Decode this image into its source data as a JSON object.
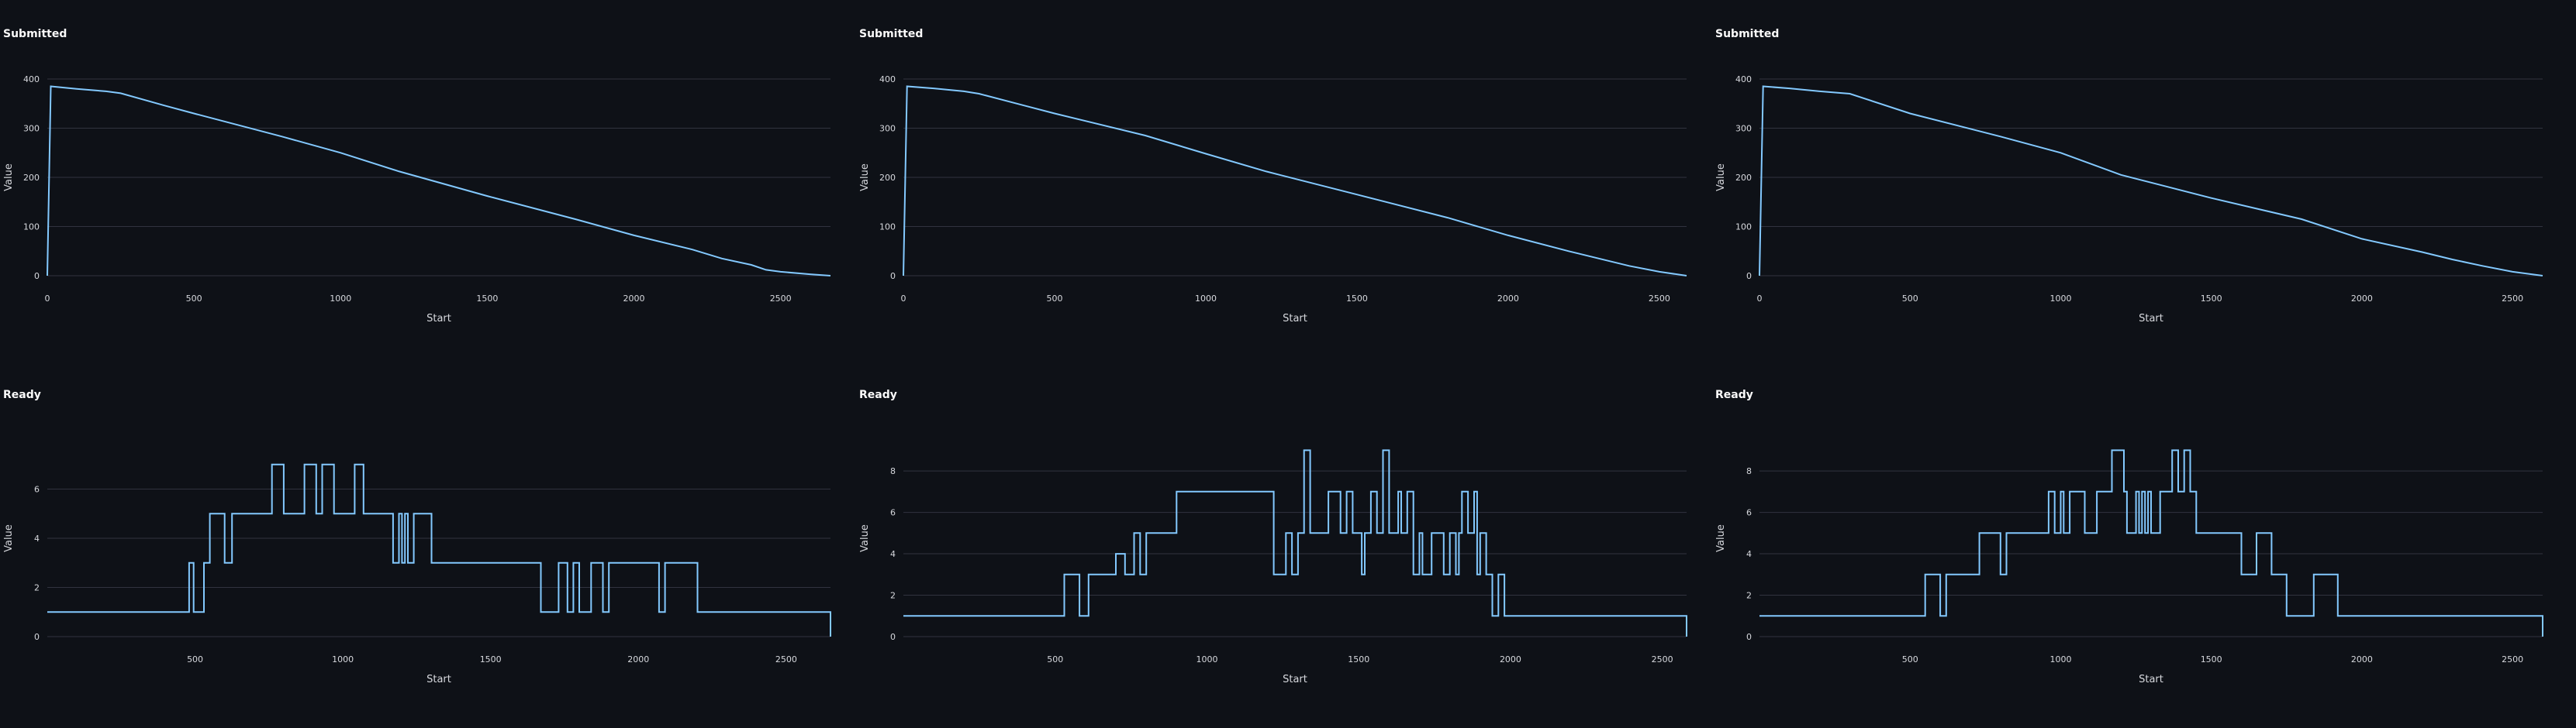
{
  "colors": {
    "background": "#0e1117",
    "line": "#83c9ff",
    "grid": "#31333f",
    "text": "#d7d9de"
  },
  "chart_data": [
    {
      "type": "line",
      "title": "Submitted",
      "xlabel": "Start",
      "ylabel": "Value",
      "xlim": [
        0,
        2670
      ],
      "ylim": [
        0,
        400
      ],
      "step": false,
      "grid": true,
      "xticks": [
        0,
        500,
        1000,
        1500,
        2000,
        2500
      ],
      "yticks": [
        0,
        100,
        200,
        300,
        400
      ],
      "series": [
        {
          "x": [
            0,
            12,
            100,
            200,
            250,
            400,
            500,
            800,
            1000,
            1200,
            1500,
            1800,
            2000,
            2200,
            2300,
            2400,
            2450,
            2500,
            2600,
            2670
          ],
          "y": [
            0,
            385,
            380,
            375,
            371,
            346,
            330,
            283,
            250,
            212,
            162,
            115,
            82,
            53,
            35,
            22,
            12,
            8,
            3,
            0
          ]
        }
      ]
    },
    {
      "type": "line",
      "title": "Submitted",
      "xlabel": "Start",
      "ylabel": "Value",
      "xlim": [
        0,
        2590
      ],
      "ylim": [
        0,
        400
      ],
      "step": false,
      "grid": true,
      "xticks": [
        0,
        500,
        1000,
        1500,
        2000,
        2500
      ],
      "yticks": [
        0,
        100,
        200,
        300,
        400
      ],
      "series": [
        {
          "x": [
            0,
            12,
            100,
            200,
            250,
            400,
            500,
            800,
            1000,
            1200,
            1500,
            1800,
            2000,
            2200,
            2300,
            2400,
            2500,
            2590
          ],
          "y": [
            0,
            385,
            381,
            375,
            370,
            346,
            330,
            285,
            248,
            212,
            165,
            118,
            82,
            50,
            35,
            20,
            8,
            0
          ]
        }
      ]
    },
    {
      "type": "line",
      "title": "Submitted",
      "xlabel": "Start",
      "ylabel": "Value",
      "xlim": [
        0,
        2600
      ],
      "ylim": [
        0,
        400
      ],
      "step": false,
      "grid": true,
      "xticks": [
        0,
        500,
        1000,
        1500,
        2000,
        2500
      ],
      "yticks": [
        0,
        100,
        200,
        300,
        400
      ],
      "series": [
        {
          "x": [
            0,
            12,
            100,
            200,
            300,
            500,
            800,
            1000,
            1200,
            1500,
            1800,
            2000,
            2200,
            2300,
            2400,
            2500,
            2600
          ],
          "y": [
            0,
            385,
            381,
            375,
            370,
            330,
            283,
            250,
            205,
            158,
            115,
            75,
            48,
            33,
            20,
            8,
            0
          ]
        }
      ]
    },
    {
      "type": "line",
      "title": "Ready",
      "xlabel": "Start",
      "ylabel": "Value",
      "xlim": [
        0,
        2650
      ],
      "ylim": [
        0,
        8
      ],
      "step": true,
      "grid": true,
      "xticks": [
        500,
        1000,
        1500,
        2000,
        2500
      ],
      "yticks": [
        0,
        2,
        4,
        6
      ],
      "series": [
        {
          "x": [
            0,
            480,
            495,
            530,
            550,
            600,
            625,
            680,
            720,
            760,
            800,
            830,
            870,
            910,
            930,
            970,
            1000,
            1040,
            1070,
            1150,
            1160,
            1170,
            1190,
            1200,
            1210,
            1220,
            1240,
            1300,
            1650,
            1670,
            1730,
            1740,
            1760,
            1780,
            1800,
            1840,
            1880,
            1900,
            1990,
            2010,
            2070,
            2090,
            2120,
            2200,
            2500,
            2650
          ],
          "y": [
            1,
            3,
            1,
            3,
            5,
            3,
            5,
            5,
            5,
            7,
            5,
            5,
            7,
            5,
            7,
            5,
            5,
            7,
            5,
            5,
            5,
            3,
            5,
            3,
            5,
            3,
            5,
            3,
            3,
            1,
            3,
            3,
            1,
            3,
            1,
            3,
            1,
            3,
            3,
            3,
            1,
            3,
            3,
            1,
            1,
            0
          ]
        }
      ]
    },
    {
      "type": "line",
      "title": "Ready",
      "xlabel": "Start",
      "ylabel": "Value",
      "xlim": [
        0,
        2580
      ],
      "ylim": [
        0,
        9.5
      ],
      "step": true,
      "grid": true,
      "xticks": [
        500,
        1000,
        1500,
        2000,
        2500
      ],
      "yticks": [
        0,
        2,
        4,
        6,
        8
      ],
      "series": [
        {
          "x": [
            0,
            530,
            580,
            610,
            700,
            730,
            760,
            780,
            800,
            900,
            1200,
            1220,
            1260,
            1280,
            1300,
            1320,
            1340,
            1380,
            1400,
            1440,
            1460,
            1480,
            1510,
            1520,
            1540,
            1560,
            1580,
            1600,
            1610,
            1630,
            1640,
            1660,
            1680,
            1700,
            1710,
            1740,
            1780,
            1800,
            1820,
            1830,
            1840,
            1860,
            1880,
            1890,
            1900,
            1920,
            1940,
            1960,
            1980,
            2010,
            2020,
            2030,
            2060,
            2100,
            2200,
            2580
          ],
          "y": [
            1,
            3,
            1,
            3,
            4,
            3,
            5,
            3,
            5,
            7,
            7,
            3,
            5,
            3,
            5,
            9,
            5,
            5,
            7,
            5,
            7,
            5,
            3,
            5,
            7,
            5,
            9,
            5,
            5,
            7,
            5,
            7,
            3,
            5,
            3,
            5,
            3,
            5,
            3,
            5,
            7,
            5,
            7,
            3,
            5,
            3,
            1,
            3,
            1,
            1,
            1,
            1,
            1,
            1,
            1,
            0
          ]
        }
      ]
    },
    {
      "type": "line",
      "title": "Ready",
      "xlabel": "Start",
      "ylabel": "Value",
      "xlim": [
        0,
        2600
      ],
      "ylim": [
        0,
        9.5
      ],
      "step": true,
      "grid": true,
      "xticks": [
        500,
        1000,
        1500,
        2000,
        2500
      ],
      "yticks": [
        0,
        2,
        4,
        6,
        8
      ],
      "series": [
        {
          "x": [
            0,
            550,
            600,
            620,
            730,
            800,
            820,
            910,
            960,
            980,
            1000,
            1010,
            1030,
            1080,
            1120,
            1170,
            1210,
            1220,
            1250,
            1260,
            1270,
            1280,
            1290,
            1300,
            1330,
            1370,
            1390,
            1410,
            1430,
            1450,
            1490,
            1600,
            1650,
            1700,
            1750,
            1840,
            1920,
            1940,
            1960,
            2600
          ],
          "y": [
            1,
            3,
            1,
            3,
            5,
            3,
            5,
            5,
            7,
            5,
            7,
            5,
            7,
            5,
            7,
            9,
            7,
            5,
            7,
            5,
            7,
            5,
            7,
            5,
            7,
            9,
            7,
            9,
            7,
            5,
            5,
            3,
            5,
            3,
            1,
            3,
            1,
            1,
            1,
            0
          ]
        }
      ]
    }
  ]
}
